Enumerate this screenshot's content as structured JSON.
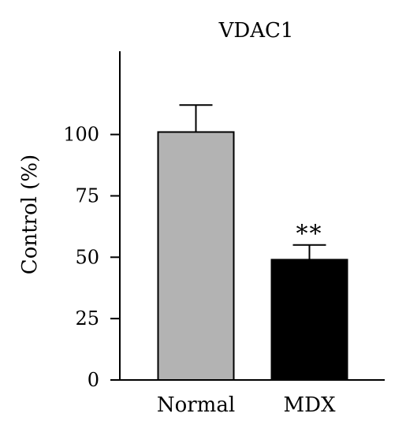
{
  "chart_data": {
    "type": "bar",
    "title": "VDAC1",
    "ylabel": "Control (%)",
    "xlabel": "",
    "categories": [
      "Normal",
      "MDX"
    ],
    "values": [
      101,
      49
    ],
    "errors": [
      11,
      6
    ],
    "bar_colors": [
      "#b3b3b3",
      "#000000"
    ],
    "yticks": [
      0,
      25,
      50,
      75,
      100
    ],
    "ylim": [
      0,
      135
    ],
    "annotations": [
      {
        "category": "MDX",
        "text": "**"
      }
    ],
    "grid": false,
    "legend": "none"
  }
}
